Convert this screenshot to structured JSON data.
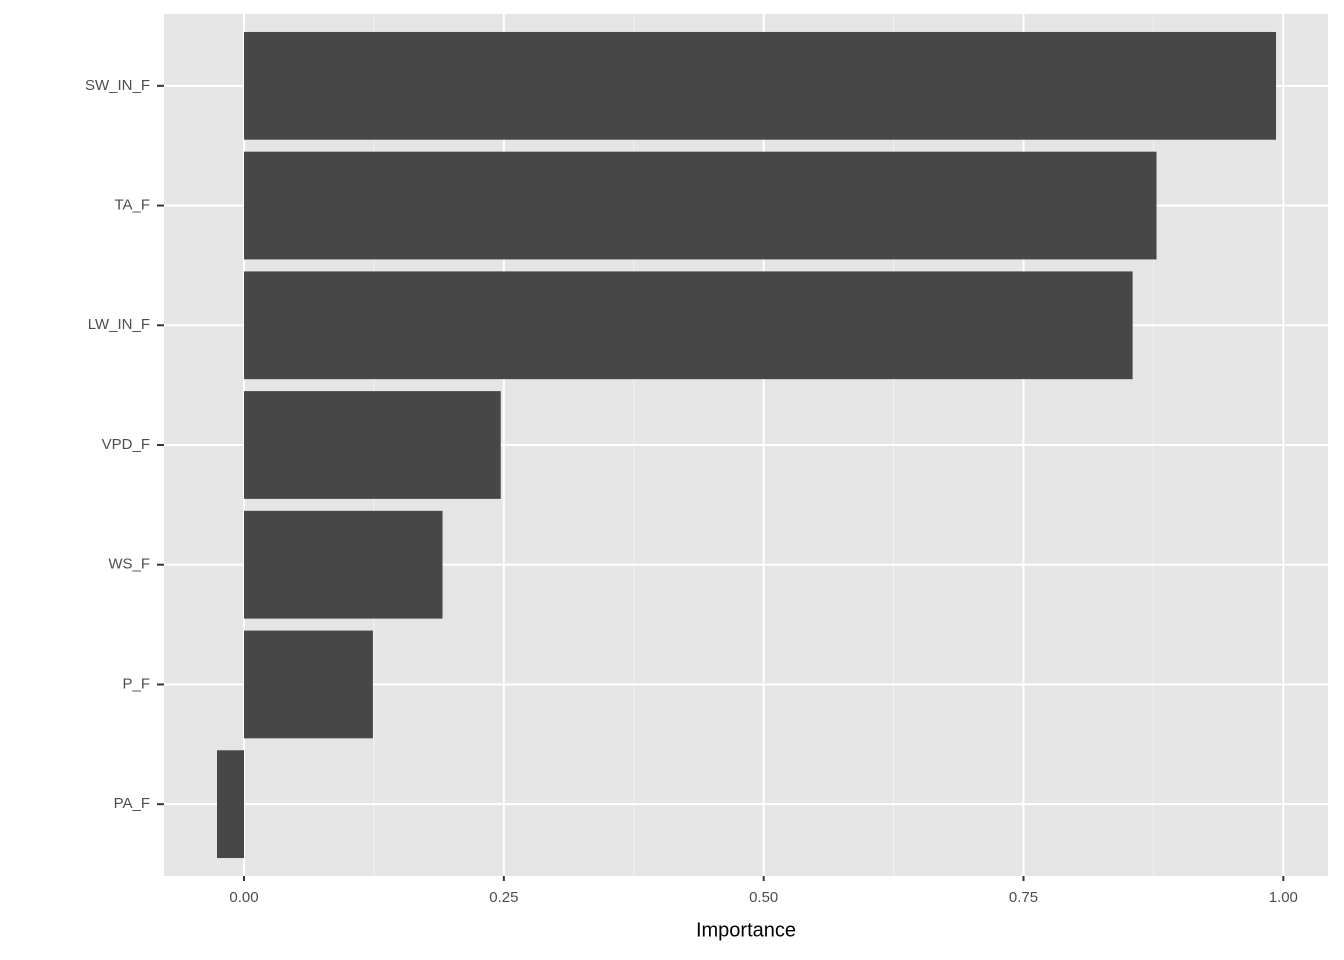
{
  "chart_data": {
    "type": "bar",
    "orientation": "horizontal",
    "x_label": "Importance",
    "categories": [
      "SW_IN_F",
      "TA_F",
      "LW_IN_F",
      "VPD_F",
      "WS_F",
      "P_F",
      "PA_F"
    ],
    "values": [
      0.993,
      0.878,
      0.855,
      0.247,
      0.191,
      0.124,
      -0.026
    ],
    "color": "#474747",
    "xlim": [
      -0.077,
      1.043
    ],
    "xticks": [
      {
        "value": 0,
        "label": "0.00"
      },
      {
        "value": 0.25,
        "label": "0.25"
      },
      {
        "value": 0.5,
        "label": "0.50"
      },
      {
        "value": 0.75,
        "label": "0.75"
      },
      {
        "value": 1,
        "label": "1.00"
      }
    ],
    "xminorticks": [
      0.125,
      0.375,
      0.625,
      0.875
    ],
    "grid": true
  }
}
